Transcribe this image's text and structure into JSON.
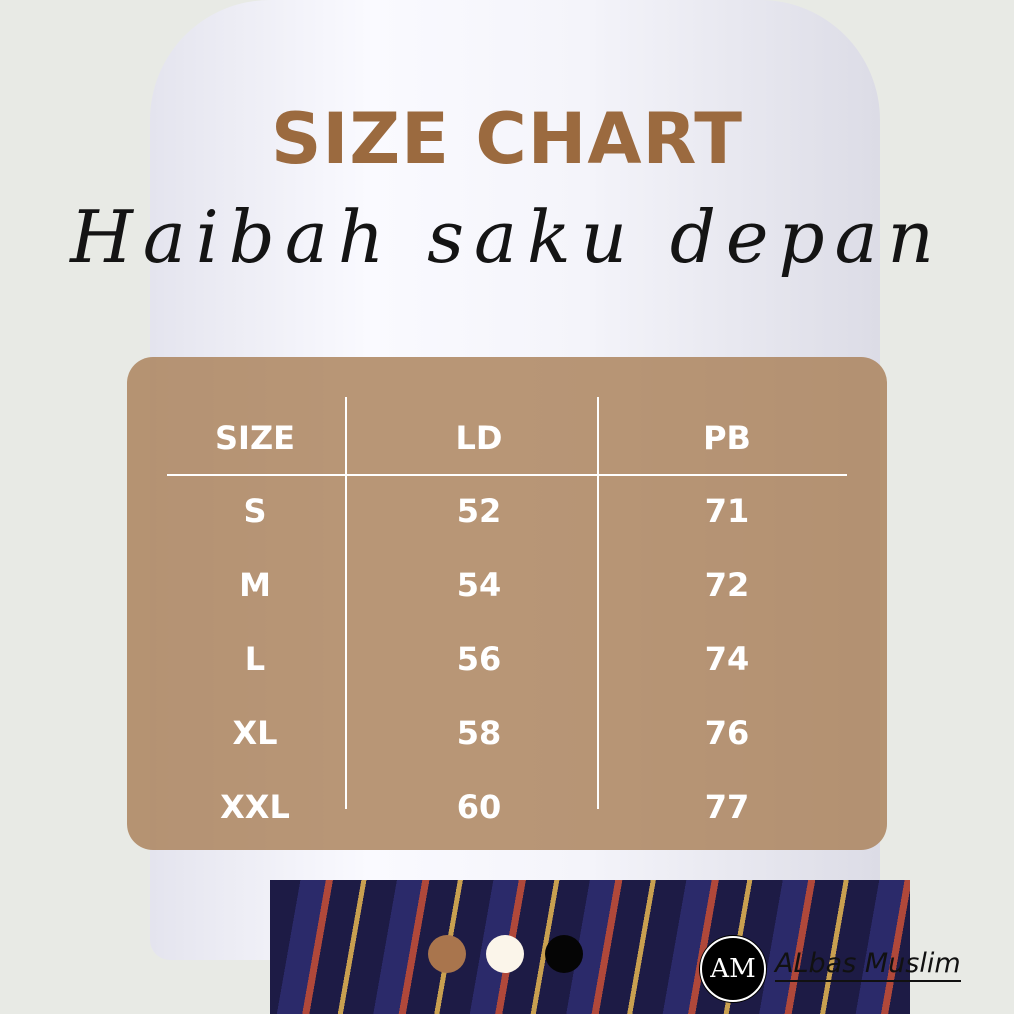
{
  "title": "SIZE CHART",
  "subtitle": "Haibah saku depan",
  "table": {
    "headers": [
      "SIZE",
      "LD",
      "PB"
    ],
    "rows": [
      [
        "S",
        "52",
        "71"
      ],
      [
        "M",
        "54",
        "72"
      ],
      [
        "L",
        "56",
        "74"
      ],
      [
        "XL",
        "58",
        "76"
      ],
      [
        "XXL",
        "60",
        "77"
      ]
    ]
  },
  "colors": {
    "accent": "#9b6a3f",
    "panel": "#aa8058",
    "swatches": [
      "#a9754d",
      "#fbf5ea",
      "#050505"
    ]
  },
  "brand": {
    "logo": "AM",
    "name": "ALbas Muslim"
  }
}
